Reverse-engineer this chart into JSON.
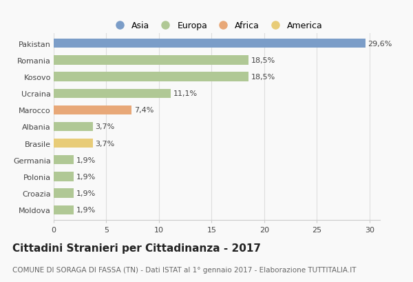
{
  "countries": [
    "Pakistan",
    "Romania",
    "Kosovo",
    "Ucraina",
    "Marocco",
    "Albania",
    "Brasile",
    "Germania",
    "Polonia",
    "Croazia",
    "Moldova"
  ],
  "values": [
    29.6,
    18.5,
    18.5,
    11.1,
    7.4,
    3.7,
    3.7,
    1.9,
    1.9,
    1.9,
    1.9
  ],
  "labels": [
    "29,6%",
    "18,5%",
    "18,5%",
    "11,1%",
    "7,4%",
    "3,7%",
    "3,7%",
    "1,9%",
    "1,9%",
    "1,9%",
    "1,9%"
  ],
  "continents": [
    "Asia",
    "Europa",
    "Europa",
    "Europa",
    "Africa",
    "Europa",
    "America",
    "Europa",
    "Europa",
    "Europa",
    "Europa"
  ],
  "colors": {
    "Asia": "#7b9dc8",
    "Europa": "#b0c895",
    "Africa": "#e8a878",
    "America": "#e8cc78"
  },
  "legend_order": [
    "Asia",
    "Europa",
    "Africa",
    "America"
  ],
  "xlim": [
    0,
    31
  ],
  "xticks": [
    0,
    5,
    10,
    15,
    20,
    25,
    30
  ],
  "title": "Cittadini Stranieri per Cittadinanza - 2017",
  "subtitle": "COMUNE DI SORAGA DI FASSA (TN) - Dati ISTAT al 1° gennaio 2017 - Elaborazione TUTTITALIA.IT",
  "bg_color": "#f9f9f9",
  "bar_height": 0.55,
  "title_fontsize": 11,
  "subtitle_fontsize": 7.5,
  "label_fontsize": 8,
  "tick_fontsize": 8,
  "legend_fontsize": 9
}
